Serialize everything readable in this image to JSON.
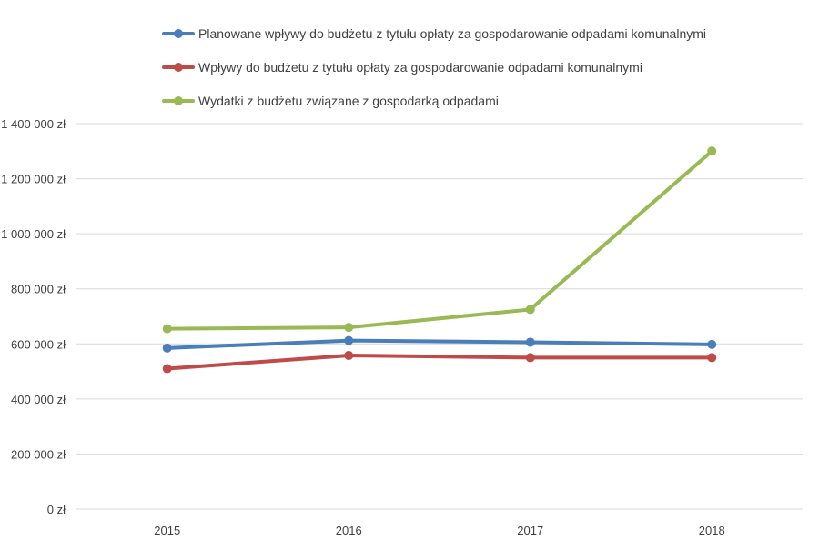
{
  "chart_data": {
    "type": "line",
    "categories": [
      "2015",
      "2016",
      "2017",
      "2018"
    ],
    "ylim": [
      0,
      1400000
    ],
    "y_ticks": [
      {
        "value": 0,
        "label": "0 zł"
      },
      {
        "value": 200000,
        "label": "200 000 zł"
      },
      {
        "value": 400000,
        "label": "400 000 zł"
      },
      {
        "value": 600000,
        "label": "600 000 zł"
      },
      {
        "value": 800000,
        "label": "800 000 zł"
      },
      {
        "value": 1000000,
        "label": "1 000 000 zł"
      },
      {
        "value": 1200000,
        "label": "1 200 000 zł"
      },
      {
        "value": 1400000,
        "label": "1 400 000 zł"
      }
    ],
    "grid": true,
    "legend_position": "top",
    "series": [
      {
        "name": "Planowane wpływy do budżetu z tytułu opłaty za gospodarowanie odpadami komunalnymi",
        "color": "#4a7ebb",
        "values": [
          585000,
          612000,
          606000,
          598000
        ]
      },
      {
        "name": "Wpływy do budżetu z tytułu opłaty za gospodarowanie odpadami komunalnymi",
        "color": "#be4b48",
        "values": [
          510000,
          558000,
          550000,
          550000
        ]
      },
      {
        "name": "Wydatki z budżetu związane z gospodarką odpadami",
        "color": "#98b954",
        "values": [
          655000,
          660000,
          725000,
          1300000
        ]
      }
    ]
  }
}
